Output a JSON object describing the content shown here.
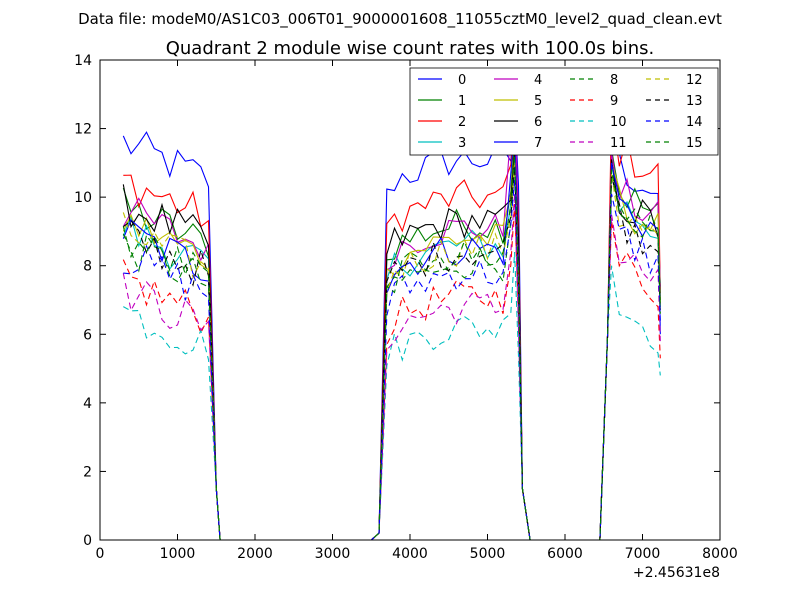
{
  "chart_data": {
    "type": "line",
    "suptitle": "Data file: modeM0/AS1C03_006T01_9000001608_11055cztM0_level2_quad_clean.evt",
    "title": "Quadrant 2 module wise count rates with 100.0s bins.",
    "xlabel": "",
    "ylabel": "",
    "x_offset_label": "+2.45631e8",
    "xlim": [
      0,
      8000
    ],
    "ylim": [
      0,
      14
    ],
    "xticks": [
      "0",
      "1000",
      "2000",
      "3000",
      "4000",
      "5000",
      "6000",
      "7000",
      "8000"
    ],
    "yticks": [
      "0",
      "2",
      "4",
      "6",
      "8",
      "10",
      "12",
      "14"
    ],
    "grid": false,
    "legend_position": "top-right",
    "segment_times": {
      "first": [
        300,
        400,
        500,
        600,
        700,
        800,
        900,
        1000,
        1100,
        1200,
        1300,
        1400,
        1500,
        1550
      ],
      "gap": [
        1550,
        2500,
        3500,
        3600,
        3650
      ],
      "second": [
        3650,
        3700,
        3800,
        3900,
        4000,
        4100,
        4200,
        4300,
        4400,
        4500,
        4600,
        4700,
        4800,
        4900,
        5000,
        5100,
        5200,
        5300,
        5350,
        5400,
        5450,
        5550
      ],
      "gap2": [
        5550,
        6000,
        6450
      ],
      "third": [
        6450,
        6550,
        6600,
        6700,
        6800,
        6900,
        7000,
        7100,
        7200,
        7230
      ]
    },
    "series": [
      {
        "name": "0",
        "color": "#0000ff",
        "dash": "solid",
        "level": 10.6,
        "peak": 12.6,
        "third": 12.1,
        "end": 6.0
      },
      {
        "name": "1",
        "color": "#008000",
        "dash": "solid",
        "level": 8.7,
        "peak": 11.8,
        "third": 11.4,
        "end": 7.2
      },
      {
        "name": "2",
        "color": "#ff0000",
        "dash": "solid",
        "level": 9.5,
        "peak": 12.4,
        "third": 12.6,
        "end": 7.3
      },
      {
        "name": "3",
        "color": "#00bfbf",
        "dash": "solid",
        "level": 8.1,
        "peak": 11.2,
        "third": 11.0,
        "end": 7.5
      },
      {
        "name": "4",
        "color": "#bf00bf",
        "dash": "solid",
        "level": 8.6,
        "peak": 13.7,
        "third": 11.3,
        "end": 7.2
      },
      {
        "name": "5",
        "color": "#bfbf00",
        "dash": "solid",
        "level": 8.3,
        "peak": 11.5,
        "third": 11.0,
        "end": 7.0
      },
      {
        "name": "6",
        "color": "#000000",
        "dash": "solid",
        "level": 8.8,
        "peak": 11.4,
        "third": 11.1,
        "end": 7.0
      },
      {
        "name": "7",
        "color": "#0000ff",
        "dash": "solid",
        "level": 8.0,
        "peak": 12.0,
        "third": 11.0,
        "end": 6.8
      },
      {
        "name": "8",
        "color": "#008000",
        "dash": "dashed",
        "level": 7.6,
        "peak": 11.0,
        "third": 10.6,
        "end": 6.6
      },
      {
        "name": "9",
        "color": "#ff0000",
        "dash": "dashed",
        "level": 6.6,
        "peak": 9.8,
        "third": 9.3,
        "end": 5.3
      },
      {
        "name": "10",
        "color": "#00bfbf",
        "dash": "dashed",
        "level": 5.7,
        "peak": 8.4,
        "third": 8.0,
        "end": 4.8
      },
      {
        "name": "11",
        "color": "#bf00bf",
        "dash": "dashed",
        "level": 6.3,
        "peak": 10.1,
        "third": 9.5,
        "end": 5.8
      },
      {
        "name": "12",
        "color": "#bfbf00",
        "dash": "dashed",
        "level": 8.0,
        "peak": 11.1,
        "third": 10.7,
        "end": 6.9
      },
      {
        "name": "13",
        "color": "#000000",
        "dash": "dashed",
        "level": 7.9,
        "peak": 10.9,
        "third": 10.6,
        "end": 6.7
      },
      {
        "name": "14",
        "color": "#0000ff",
        "dash": "dashed",
        "level": 7.3,
        "peak": 10.5,
        "third": 10.1,
        "end": 6.4
      },
      {
        "name": "15",
        "color": "#008000",
        "dash": "dashed",
        "level": 7.8,
        "peak": 11.2,
        "third": 10.8,
        "end": 6.8
      }
    ]
  }
}
